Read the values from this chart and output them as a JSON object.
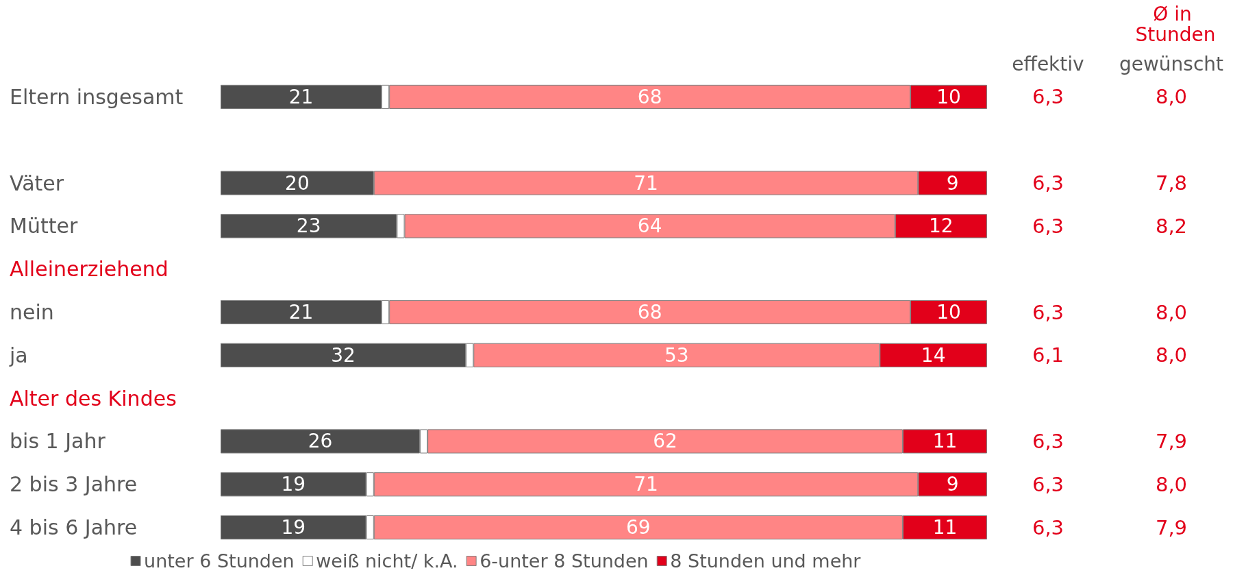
{
  "chart_data": [
    {
      "type": "bar",
      "orientation": "horizontal",
      "stacked": true,
      "categories": [
        "Eltern insgesamt",
        null,
        "Väter",
        "Mütter",
        "Alleinerziehend",
        "nein",
        "ja",
        "Alter des Kindes",
        "bis 1 Jahr",
        "2 bis 3 Jahre",
        "4 bis 6 Jahre"
      ],
      "series": [
        {
          "name": "unter 6 Stunden",
          "color": "#4d4d4d",
          "values": [
            21,
            null,
            20,
            23,
            null,
            21,
            32,
            null,
            26,
            19,
            19
          ],
          "value_labels": [
            "21",
            null,
            "20",
            "23",
            null,
            "21",
            "32",
            null,
            "26",
            "19",
            "19"
          ]
        },
        {
          "name": "weiß nicht/ k.A.",
          "color": "#ffffff",
          "values": [
            1,
            null,
            null,
            1,
            null,
            1,
            1,
            null,
            1,
            1,
            1
          ],
          "value_labels": [
            null,
            null,
            null,
            null,
            null,
            null,
            null,
            null,
            null,
            null,
            null
          ]
        },
        {
          "name": "6-unter 8 Stunden",
          "color": "#ff8585",
          "values": [
            68,
            null,
            71,
            64,
            null,
            68,
            53,
            null,
            62,
            71,
            69
          ],
          "value_labels": [
            "68",
            null,
            "71",
            "64",
            null,
            "68",
            "53",
            null,
            "62",
            "71",
            "69"
          ]
        },
        {
          "name": "8 Stunden und mehr",
          "color": "#e2001a",
          "values": [
            10,
            null,
            9,
            12,
            null,
            10,
            14,
            null,
            11,
            9,
            11
          ],
          "value_labels": [
            "10",
            null,
            "9",
            "12",
            null,
            "10",
            "14",
            null,
            "11",
            "9",
            "11"
          ]
        }
      ],
      "xlim": [
        0,
        100
      ],
      "tick_labels": "y",
      "legend": "bottom"
    },
    {
      "type": "other",
      "title": "Ø in Stunden",
      "annotations": [
        "effektiv",
        "gewünscht",
        "6,3",
        "8,0",
        "6,3",
        "7,8",
        "6,3",
        "8,2",
        "6,3",
        "8,0",
        "6,1",
        "8,0",
        "6,3",
        "7,9",
        "6,3",
        "8,0",
        "6,3",
        "7,9"
      ]
    }
  ]
}
